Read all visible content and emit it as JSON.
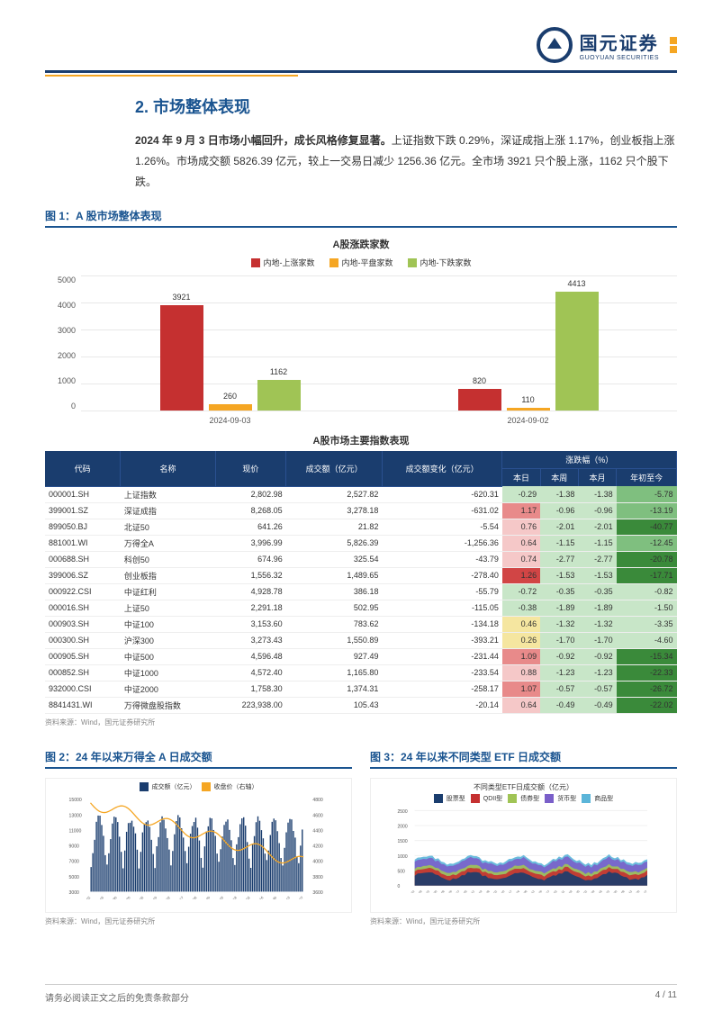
{
  "logo": {
    "cn": "国元证券",
    "en": "GUOYUAN SECURITIES"
  },
  "section": {
    "num": "2.",
    "title": "市场整体表现"
  },
  "summary": {
    "lead": "2024 年 9 月 3 日市场小幅回升，成长风格修复显著。",
    "rest": "上证指数下跌 0.29%，深证成指上涨 1.17%，创业板指上涨 1.26%。市场成交额 5826.39 亿元，较上一交易日减少 1256.36 亿元。全市场 3921 只个股上涨，1162 只个股下跌。"
  },
  "fig1": {
    "caption": "图 1：A 股市场整体表现",
    "chart": {
      "title": "A股涨跌家数",
      "legend": [
        {
          "label": "内地-上涨家数",
          "color": "#c53030"
        },
        {
          "label": "内地-平盘家数",
          "color": "#f5a623"
        },
        {
          "label": "内地-下跌家数",
          "color": "#a0c455"
        }
      ],
      "ymax": 5000,
      "yticks": [
        0,
        1000,
        2000,
        3000,
        4000,
        5000
      ],
      "groups": [
        {
          "x": "2024-09-03",
          "bars": [
            {
              "v": 3921,
              "c": "#c53030"
            },
            {
              "v": 260,
              "c": "#f5a623"
            },
            {
              "v": 1162,
              "c": "#a0c455"
            }
          ]
        },
        {
          "x": "2024-09-02",
          "bars": [
            {
              "v": 820,
              "c": "#c53030"
            },
            {
              "v": 110,
              "c": "#f5a623"
            },
            {
              "v": 4413,
              "c": "#a0c455"
            }
          ]
        }
      ]
    },
    "table": {
      "title": "A股市场主要指数表现",
      "head1": [
        "代码",
        "名称",
        "现价",
        "成交额（亿元）",
        "成交额变化（亿元）",
        "涨跌幅（%）"
      ],
      "head2": [
        "本日",
        "本周",
        "本月",
        "年初至今"
      ],
      "colors": {
        "neg_dark": "#3a8a3a",
        "neg_mid": "#7fbf7f",
        "neg_light": "#c8e6c8",
        "pos_dark": "#d14545",
        "pos_mid": "#e88a8a",
        "pos_light": "#f5c8c8",
        "neu": "#f5e6a0"
      },
      "rows": [
        {
          "code": "000001.SH",
          "name": "上证指数",
          "price": "2,802.98",
          "vol": "2,527.82",
          "dvol": "-620.31",
          "d": "-0.29",
          "w": "-1.38",
          "m": "-1.38",
          "y": "-5.78"
        },
        {
          "code": "399001.SZ",
          "name": "深证成指",
          "price": "8,268.05",
          "vol": "3,278.18",
          "dvol": "-631.02",
          "d": "1.17",
          "w": "-0.96",
          "m": "-0.96",
          "y": "-13.19"
        },
        {
          "code": "899050.BJ",
          "name": "北证50",
          "price": "641.26",
          "vol": "21.82",
          "dvol": "-5.54",
          "d": "0.76",
          "w": "-2.01",
          "m": "-2.01",
          "y": "-40.77"
        },
        {
          "code": "881001.WI",
          "name": "万得全A",
          "price": "3,996.99",
          "vol": "5,826.39",
          "dvol": "-1,256.36",
          "d": "0.64",
          "w": "-1.15",
          "m": "-1.15",
          "y": "-12.45"
        },
        {
          "code": "000688.SH",
          "name": "科创50",
          "price": "674.96",
          "vol": "325.54",
          "dvol": "-43.79",
          "d": "0.74",
          "w": "-2.77",
          "m": "-2.77",
          "y": "-20.78"
        },
        {
          "code": "399006.SZ",
          "name": "创业板指",
          "price": "1,556.32",
          "vol": "1,489.65",
          "dvol": "-278.40",
          "d": "1.26",
          "w": "-1.53",
          "m": "-1.53",
          "y": "-17.71"
        },
        {
          "code": "000922.CSI",
          "name": "中证红利",
          "price": "4,928.78",
          "vol": "386.18",
          "dvol": "-55.79",
          "d": "-0.72",
          "w": "-0.35",
          "m": "-0.35",
          "y": "-0.82"
        },
        {
          "code": "000016.SH",
          "name": "上证50",
          "price": "2,291.18",
          "vol": "502.95",
          "dvol": "-115.05",
          "d": "-0.38",
          "w": "-1.89",
          "m": "-1.89",
          "y": "-1.50"
        },
        {
          "code": "000903.SH",
          "name": "中证100",
          "price": "3,153.60",
          "vol": "783.62",
          "dvol": "-134.18",
          "d": "0.46",
          "w": "-1.32",
          "m": "-1.32",
          "y": "-3.35"
        },
        {
          "code": "000300.SH",
          "name": "沪深300",
          "price": "3,273.43",
          "vol": "1,550.89",
          "dvol": "-393.21",
          "d": "0.26",
          "w": "-1.70",
          "m": "-1.70",
          "y": "-4.60"
        },
        {
          "code": "000905.SH",
          "name": "中证500",
          "price": "4,596.48",
          "vol": "927.49",
          "dvol": "-231.44",
          "d": "1.09",
          "w": "-0.92",
          "m": "-0.92",
          "y": "-15.34"
        },
        {
          "code": "000852.SH",
          "name": "中证1000",
          "price": "4,572.40",
          "vol": "1,165.80",
          "dvol": "-233.54",
          "d": "0.88",
          "w": "-1.23",
          "m": "-1.23",
          "y": "-22.33"
        },
        {
          "code": "932000.CSI",
          "name": "中证2000",
          "price": "1,758.30",
          "vol": "1,374.31",
          "dvol": "-258.17",
          "d": "1.07",
          "w": "-0.57",
          "m": "-0.57",
          "y": "-26.72"
        },
        {
          "code": "8841431.WI",
          "name": "万得微盘股指数",
          "price": "223,938.00",
          "vol": "105.43",
          "dvol": "-20.14",
          "d": "0.64",
          "w": "-0.49",
          "m": "-0.49",
          "y": "-22.02"
        }
      ]
    },
    "source": "资料来源：Wind，国元证券研究所"
  },
  "fig2": {
    "caption": "图 2：24 年以来万得全 A 日成交额",
    "legend": [
      {
        "label": "成交额（亿元）",
        "color": "#1a3d6e"
      },
      {
        "label": "收盘价（右轴）",
        "color": "#f5a623"
      }
    ],
    "yleft": [
      3000,
      5000,
      7000,
      9000,
      11000,
      13000,
      15000
    ],
    "yright": [
      3600,
      3800,
      4000,
      4200,
      4400,
      4600,
      4800
    ],
    "xlabels": [
      "2024-01-02",
      "2024-01-16",
      "2024-01-30",
      "2024-02-20",
      "2024-03-05",
      "2024-03-19",
      "2024-04-02",
      "2024-04-17",
      "2024-05-06",
      "2024-05-20",
      "2024-06-03",
      "2024-06-18",
      "2024-07-02",
      "2024-07-16",
      "2024-07-30",
      "2024-08-13",
      "2024-08-27"
    ],
    "source": "资料来源：Wind，国元证券研究所"
  },
  "fig3": {
    "caption": "图 3：24 年以来不同类型 ETF 日成交额",
    "title": "不同类型ETF日成交额（亿元）",
    "legend": [
      {
        "label": "股票型",
        "color": "#1a3d6e"
      },
      {
        "label": "QDII型",
        "color": "#c53030"
      },
      {
        "label": "债券型",
        "color": "#a0c455"
      },
      {
        "label": "货币型",
        "color": "#7a5fc9"
      },
      {
        "label": "商品型",
        "color": "#5bb5d9"
      }
    ],
    "yticks": [
      0,
      500,
      1000,
      1500,
      2000,
      2500
    ],
    "xlabels": [
      "2024-01-02",
      "2024-01-09",
      "2024-01-23",
      "2024-01-30",
      "2024-02-06",
      "2024-02-20",
      "2024-02-27",
      "2024-03-05",
      "2024-03-12",
      "2024-03-19",
      "2024-03-26",
      "2024-04-02",
      "2024-04-10",
      "2024-04-17",
      "2024-04-24",
      "2024-05-06",
      "2024-05-13",
      "2024-05-20",
      "2024-05-27",
      "2024-06-03",
      "2024-06-11",
      "2024-06-18",
      "2024-06-25",
      "2024-07-02",
      "2024-07-09",
      "2024-07-16",
      "2024-07-23",
      "2024-07-30",
      "2024-08-06",
      "2024-08-13",
      "2024-08-20",
      "2024-08-27"
    ],
    "source": "资料来源：Wind，国元证券研究所"
  },
  "footer": {
    "left": "请务必阅读正文之后的免责条款部分",
    "right": "4 / 11"
  }
}
